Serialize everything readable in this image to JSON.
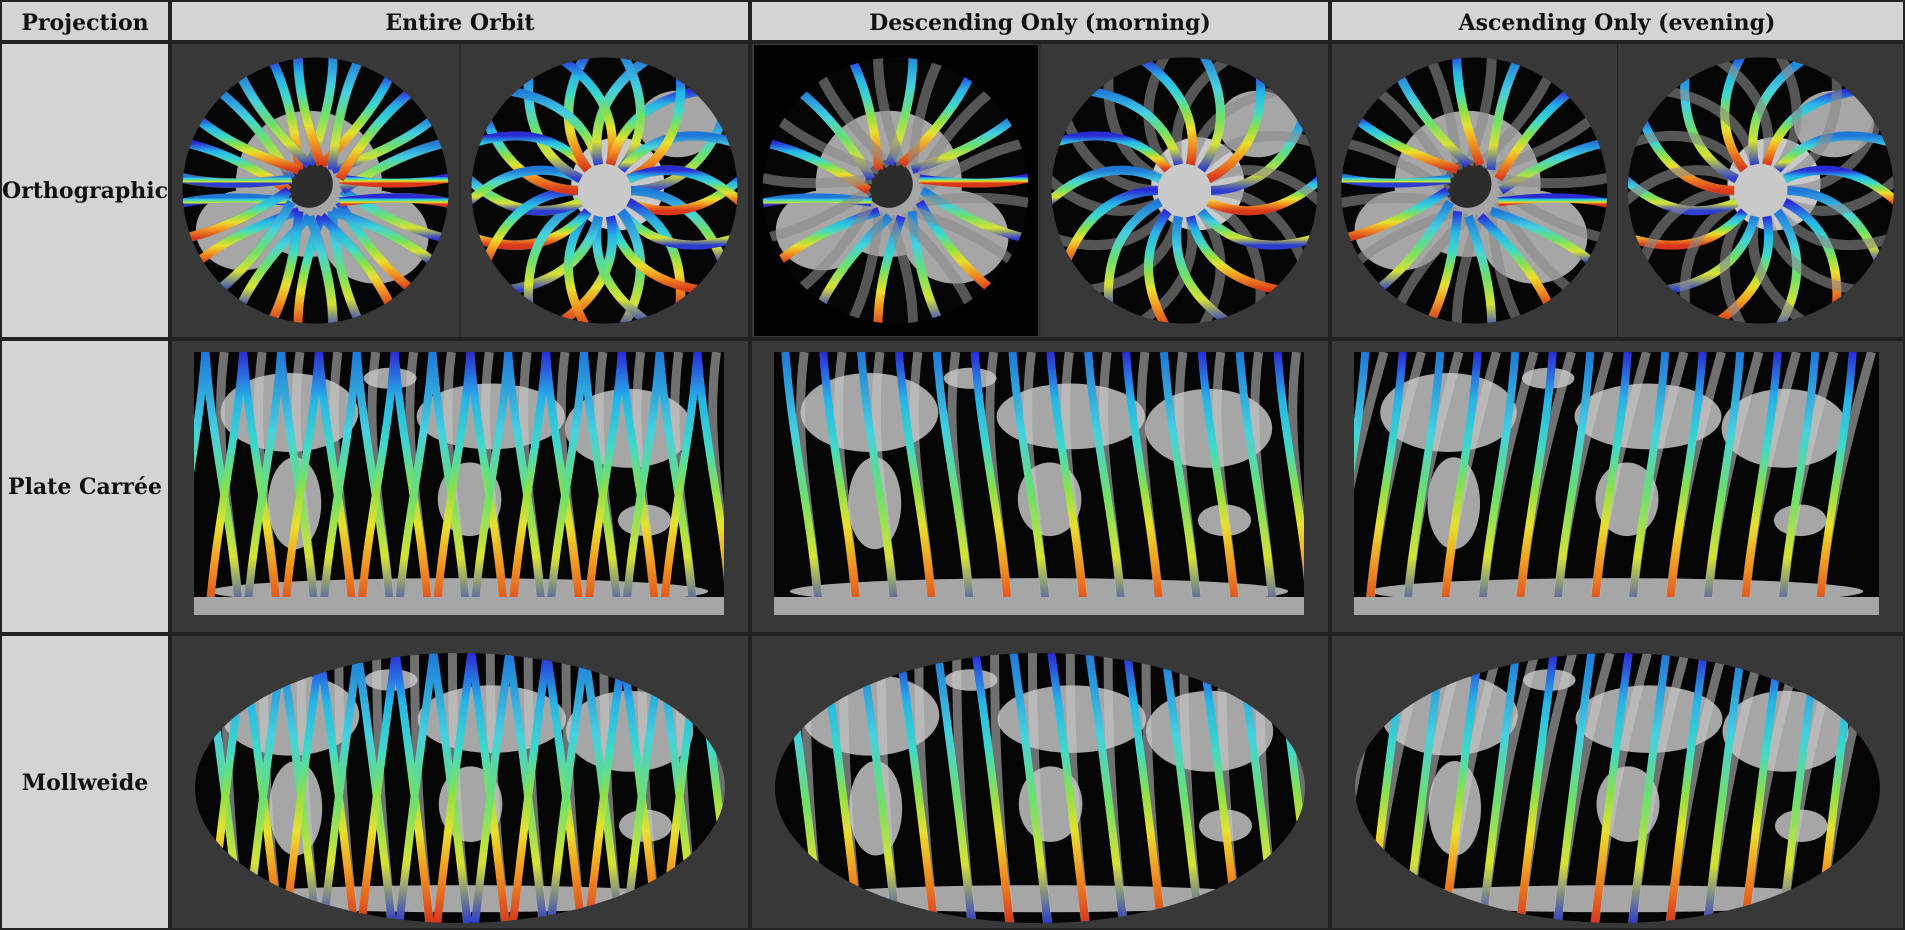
{
  "table": {
    "header_projection": "Projection",
    "columns": [
      "Entire Orbit",
      "Descending Only (morning)",
      "Ascending Only (evening)"
    ],
    "rows": [
      "Orthographic",
      "Plate Carrée",
      "Mollweide"
    ]
  },
  "colors": {
    "cell_bg": "#383838",
    "header_bg": "#d4d4d4",
    "border": "#222222",
    "land": "#a6a6a6",
    "ocean": "#050505",
    "gap": "#5c5c5c"
  },
  "maps": {
    "Orthographic": {
      "Entire Orbit": [
        "north-pole-globe",
        "south-pole-globe"
      ],
      "Descending Only (morning)": [
        "north-pole-globe",
        "south-pole-globe"
      ],
      "Ascending Only (evening)": [
        "north-pole-globe",
        "south-pole-globe"
      ]
    },
    "Plate Carrée": {
      "Entire Orbit": [
        "world-map"
      ],
      "Descending Only (morning)": [
        "world-map"
      ],
      "Ascending Only (evening)": [
        "world-map"
      ]
    },
    "Mollweide": {
      "Entire Orbit": [
        "world-map"
      ],
      "Descending Only (morning)": [
        "world-map"
      ],
      "Ascending Only (evening)": [
        "world-map"
      ]
    }
  }
}
